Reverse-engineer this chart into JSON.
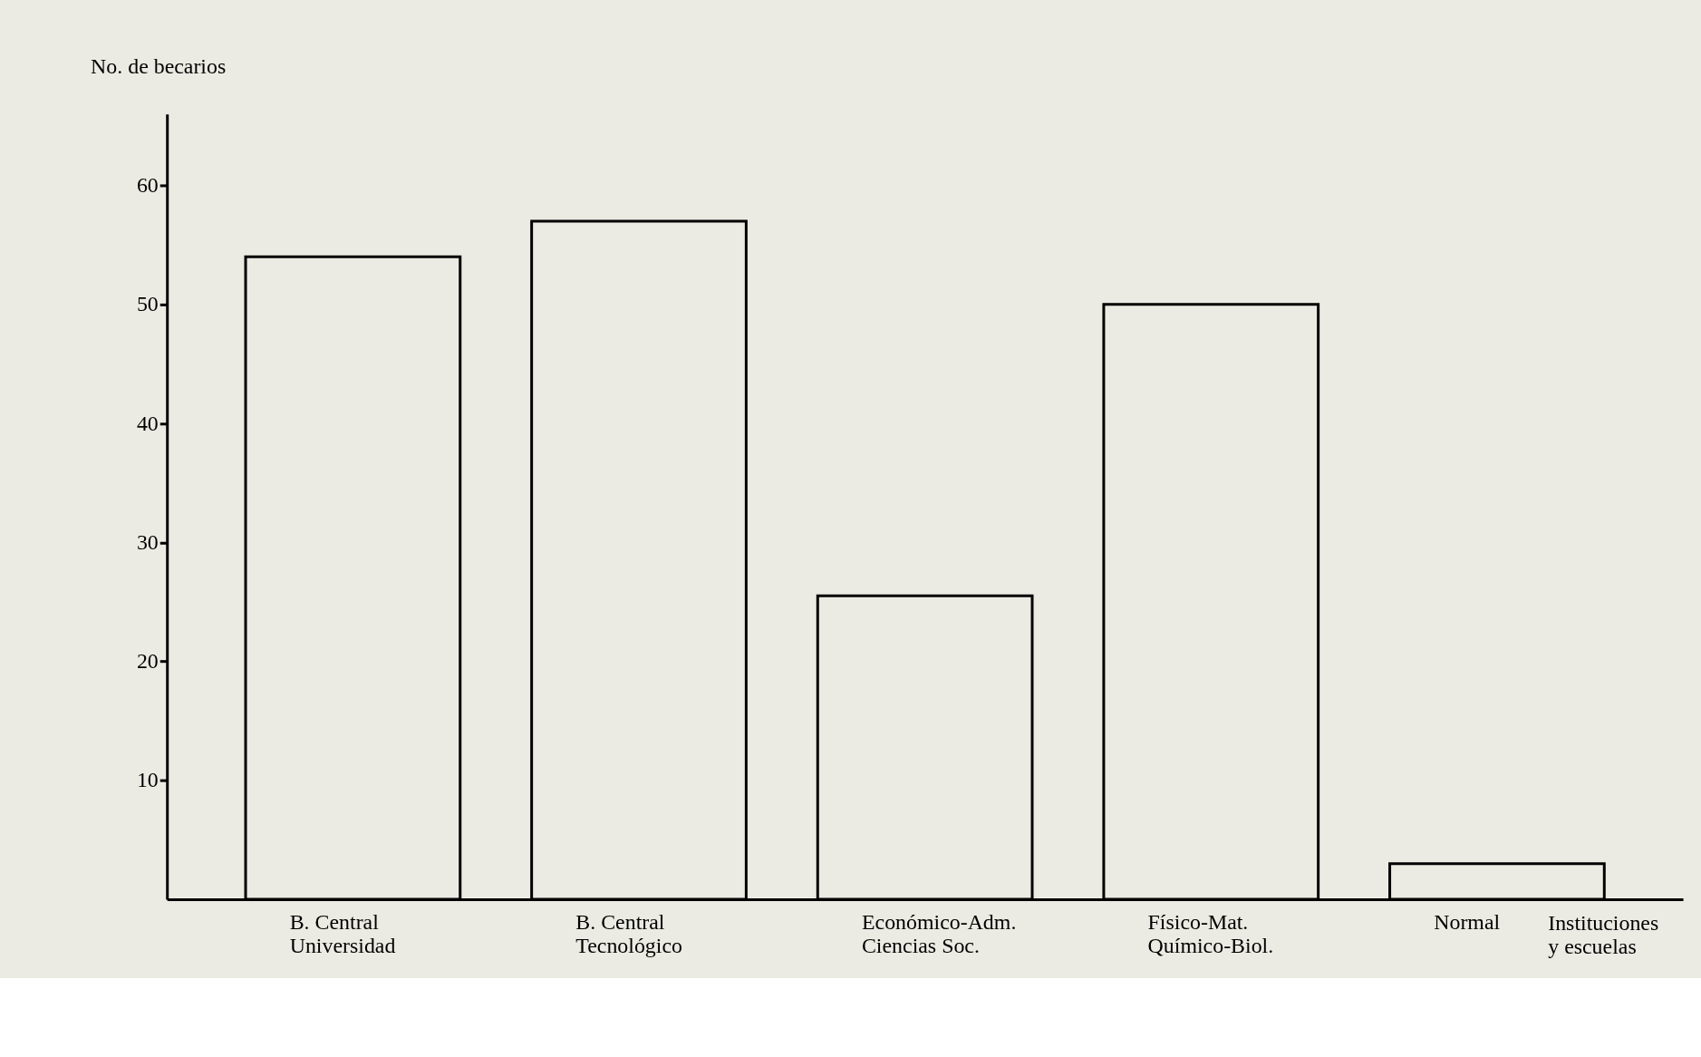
{
  "chart_data": {
    "type": "bar",
    "categories": [
      "B. Central\nUniversidad",
      "B. Central\nTecnológico",
      "Económico-Adm.\nCiencias Soc.",
      "Físico-Mat.\nQuímico-Biol.",
      "Normal"
    ],
    "values": [
      54,
      57,
      25.5,
      50,
      3
    ],
    "color": "#000000",
    "xlabel": "Instituciones\ny escuelas",
    "ylabel": "No. de becarios",
    "ylim": [
      0,
      66
    ],
    "yticks": [
      10,
      20,
      30,
      40,
      50,
      60
    ],
    "grid": false
  }
}
